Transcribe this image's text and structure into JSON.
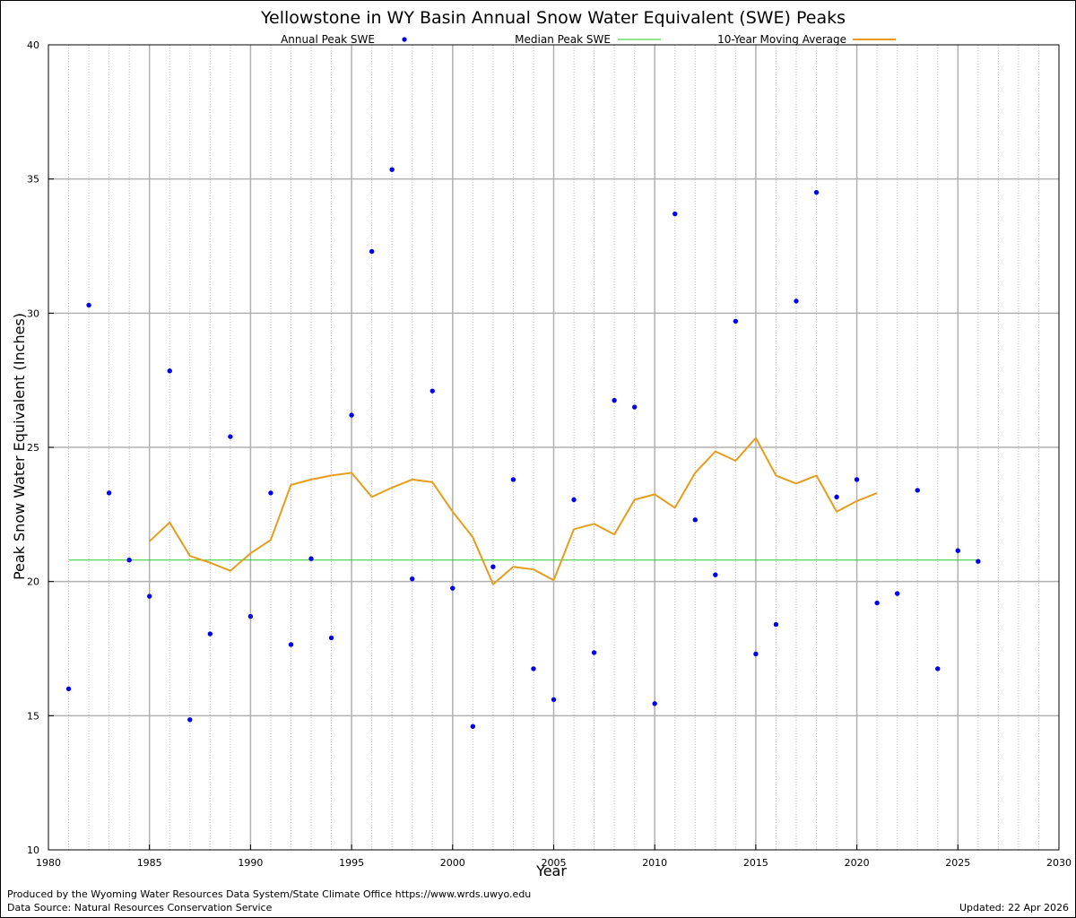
{
  "chart_data": {
    "type": "scatter",
    "title": "Yellowstone in WY Basin Annual Snow Water Equivalent (SWE) Peaks",
    "xlabel": "Year",
    "ylabel": "Peak Snow Water Equivalent (Inches)",
    "xlim": [
      1980,
      2030
    ],
    "ylim": [
      10,
      40
    ],
    "x_ticks": [
      1980,
      1985,
      1990,
      1995,
      2000,
      2005,
      2010,
      2015,
      2020,
      2025,
      2030
    ],
    "y_ticks": [
      10,
      15,
      20,
      25,
      30,
      35,
      40
    ],
    "grid": true,
    "legend_position": "top",
    "series": [
      {
        "name": "Annual Peak SWE",
        "kind": "points",
        "color": "#0000ee",
        "x": [
          1981,
          1982,
          1983,
          1984,
          1985,
          1986,
          1987,
          1988,
          1989,
          1990,
          1991,
          1992,
          1993,
          1994,
          1995,
          1996,
          1997,
          1998,
          1999,
          2000,
          2001,
          2002,
          2003,
          2004,
          2005,
          2006,
          2007,
          2008,
          2009,
          2010,
          2011,
          2012,
          2013,
          2014,
          2015,
          2016,
          2017,
          2018,
          2019,
          2020,
          2021,
          2022,
          2023,
          2024,
          2025,
          2026
        ],
        "y": [
          16.0,
          30.3,
          23.3,
          20.8,
          19.45,
          27.85,
          14.85,
          18.05,
          25.4,
          18.7,
          23.3,
          17.65,
          20.85,
          17.9,
          26.2,
          32.3,
          35.35,
          20.1,
          27.1,
          19.75,
          14.6,
          20.55,
          23.8,
          16.75,
          15.6,
          23.05,
          17.35,
          26.75,
          26.5,
          15.45,
          33.7,
          22.3,
          20.25,
          29.7,
          17.3,
          18.4,
          30.45,
          34.5,
          23.15,
          23.8,
          19.2,
          19.55,
          23.4,
          16.75,
          21.15,
          20.75
        ]
      },
      {
        "name": "Median Peak SWE",
        "kind": "hline",
        "color": "#22cc22",
        "x": [
          1981,
          2026
        ],
        "y": [
          20.8,
          20.8
        ]
      },
      {
        "name": "10-Year Moving Average",
        "kind": "line",
        "color": "#e69d1c",
        "x": [
          1985,
          1986,
          1987,
          1988,
          1989,
          1990,
          1991,
          1992,
          1993,
          1994,
          1995,
          1996,
          1997,
          1998,
          1999,
          2000,
          2001,
          2002,
          2003,
          2004,
          2005,
          2006,
          2007,
          2008,
          2009,
          2010,
          2011,
          2012,
          2013,
          2014,
          2015,
          2016,
          2017,
          2018,
          2019,
          2020,
          2021
        ],
        "y": [
          21.5,
          22.2,
          20.95,
          20.7,
          20.4,
          21.05,
          21.55,
          23.6,
          23.8,
          23.95,
          24.05,
          23.15,
          23.5,
          23.8,
          23.7,
          22.6,
          21.65,
          19.9,
          20.55,
          20.45,
          20.05,
          21.95,
          22.15,
          21.75,
          23.05,
          23.25,
          22.75,
          24.05,
          24.85,
          24.5,
          25.35,
          23.95,
          23.65,
          23.95,
          22.6,
          23.0,
          23.3
        ]
      }
    ]
  },
  "footer": {
    "producer": "Produced by the Wyoming Water Resources Data System/State Climate Office https://www.wrds.uwyo.edu",
    "source": "Data Source: Natural Resources Conservation Service",
    "updated": "Updated: 22 Apr 2026"
  }
}
